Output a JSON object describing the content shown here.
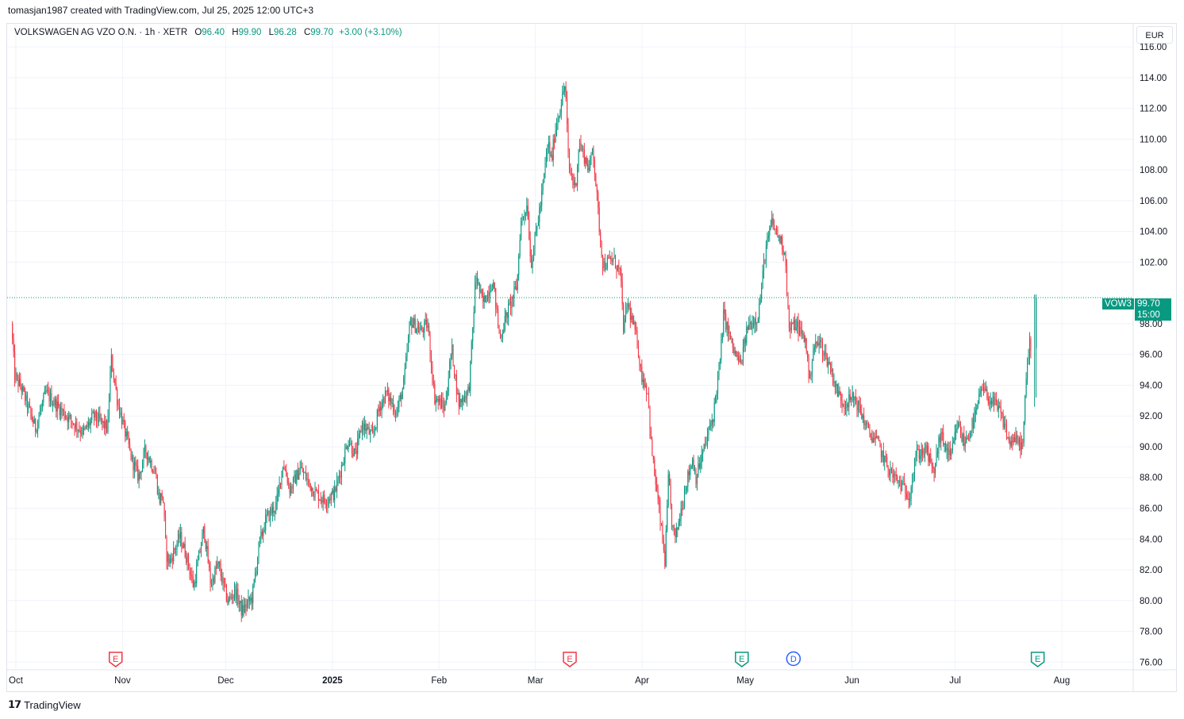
{
  "attribution": "tomasjan1987 created with TradingView.com, Jul 25, 2025 12:00 UTC+3",
  "legend": {
    "symbol": "VOLKSWAGEN AG VZO O.N. · 1h · XETR",
    "open_label": "O",
    "open": "96.40",
    "high_label": "H",
    "high": "99.90",
    "low_label": "L",
    "low": "96.28",
    "close_label": "C",
    "close": "99.70",
    "change": "+3.00 (+3.10%)"
  },
  "currency": "EUR",
  "last_price": {
    "ticker": "VOW3",
    "price": "99.70",
    "countdown": "15:00"
  },
  "logo_text": "TradingView",
  "colors": {
    "up": "#089981",
    "down": "#f23645",
    "grid": "#f0f3fa",
    "dividend": "#2962ff"
  },
  "chart_data": {
    "type": "candlestick",
    "title": "VOLKSWAGEN AG VZO O.N. · 1h · XETR",
    "ylim": [
      75.5,
      117.5
    ],
    "y_ticks": [
      "116.00",
      "114.00",
      "112.00",
      "110.00",
      "108.00",
      "106.00",
      "104.00",
      "102.00",
      "98.00",
      "96.00",
      "94.00",
      "92.00",
      "90.00",
      "88.00",
      "86.00",
      "84.00",
      "82.00",
      "80.00",
      "78.00",
      "76.00"
    ],
    "x_ticks": [
      {
        "label": "Oct",
        "date": "2024-10-01"
      },
      {
        "label": "Nov",
        "date": "2024-11-01"
      },
      {
        "label": "Dec",
        "date": "2024-12-01"
      },
      {
        "label": "2025",
        "date": "2025-01-01",
        "bold": true
      },
      {
        "label": "Feb",
        "date": "2025-02-01"
      },
      {
        "label": "Mar",
        "date": "2025-03-01"
      },
      {
        "label": "Apr",
        "date": "2025-04-01"
      },
      {
        "label": "May",
        "date": "2025-05-01"
      },
      {
        "label": "Jun",
        "date": "2025-06-01"
      },
      {
        "label": "Jul",
        "date": "2025-07-01"
      },
      {
        "label": "Aug",
        "date": "2025-08-01"
      }
    ],
    "price_path": [
      [
        "2024-09-30",
        98.0
      ],
      [
        "2024-10-01",
        94.6
      ],
      [
        "2024-10-03",
        93.8
      ],
      [
        "2024-10-07",
        91.2
      ],
      [
        "2024-10-10",
        93.5
      ],
      [
        "2024-10-14",
        92.5
      ],
      [
        "2024-10-17",
        91.8
      ],
      [
        "2024-10-21",
        90.9
      ],
      [
        "2024-10-24",
        92.0
      ],
      [
        "2024-10-28",
        91.2
      ],
      [
        "2024-10-29",
        95.8
      ],
      [
        "2024-10-31",
        92.8
      ],
      [
        "2024-11-04",
        89.2
      ],
      [
        "2024-11-06",
        88.0
      ],
      [
        "2024-11-08",
        89.8
      ],
      [
        "2024-11-11",
        88.2
      ],
      [
        "2024-11-12",
        86.5
      ],
      [
        "2024-11-13",
        87.0
      ],
      [
        "2024-11-14",
        83.0
      ],
      [
        "2024-11-15",
        82.5
      ],
      [
        "2024-11-18",
        84.2
      ],
      [
        "2024-11-20",
        82.8
      ],
      [
        "2024-11-22",
        80.9
      ],
      [
        "2024-11-25",
        84.7
      ],
      [
        "2024-11-27",
        81.0
      ],
      [
        "2024-11-29",
        82.4
      ],
      [
        "2024-12-02",
        79.9
      ],
      [
        "2024-12-04",
        80.7
      ],
      [
        "2024-12-06",
        79.3
      ],
      [
        "2024-12-09",
        80.2
      ],
      [
        "2024-12-11",
        83.6
      ],
      [
        "2024-12-13",
        85.3
      ],
      [
        "2024-12-16",
        86.2
      ],
      [
        "2024-12-18",
        89.0
      ],
      [
        "2024-12-20",
        87.2
      ],
      [
        "2024-12-23",
        88.6
      ],
      [
        "2024-12-27",
        87.1
      ],
      [
        "2024-12-30",
        86.5
      ],
      [
        "2025-01-02",
        87.0
      ],
      [
        "2025-01-06",
        90.5
      ],
      [
        "2025-01-08",
        89.4
      ],
      [
        "2025-01-10",
        91.5
      ],
      [
        "2025-01-13",
        90.6
      ],
      [
        "2025-01-15",
        92.6
      ],
      [
        "2025-01-17",
        93.5
      ],
      [
        "2025-01-20",
        92.2
      ],
      [
        "2025-01-22",
        94.0
      ],
      [
        "2025-01-24",
        98.2
      ],
      [
        "2025-01-27",
        97.5
      ],
      [
        "2025-01-29",
        98.0
      ],
      [
        "2025-01-31",
        93.2
      ],
      [
        "2025-02-03",
        92.5
      ],
      [
        "2025-02-05",
        96.4
      ],
      [
        "2025-02-07",
        92.8
      ],
      [
        "2025-02-10",
        93.7
      ],
      [
        "2025-02-11",
        97.2
      ],
      [
        "2025-02-12",
        101.2
      ],
      [
        "2025-02-14",
        99.3
      ],
      [
        "2025-02-17",
        100.8
      ],
      [
        "2025-02-19",
        97.0
      ],
      [
        "2025-02-21",
        98.6
      ],
      [
        "2025-02-24",
        100.5
      ],
      [
        "2025-02-25",
        104.5
      ],
      [
        "2025-02-27",
        105.8
      ],
      [
        "2025-02-28",
        101.8
      ],
      [
        "2025-03-03",
        106.0
      ],
      [
        "2025-03-05",
        109.8
      ],
      [
        "2025-03-06",
        108.5
      ],
      [
        "2025-03-07",
        110.5
      ],
      [
        "2025-03-10",
        113.6
      ],
      [
        "2025-03-11",
        108.2
      ],
      [
        "2025-03-13",
        106.8
      ],
      [
        "2025-03-14",
        109.8
      ],
      [
        "2025-03-17",
        108.0
      ],
      [
        "2025-03-18",
        109.6
      ],
      [
        "2025-03-20",
        104.0
      ],
      [
        "2025-03-21",
        101.8
      ],
      [
        "2025-03-24",
        102.2
      ],
      [
        "2025-03-26",
        101.3
      ],
      [
        "2025-03-27",
        97.5
      ],
      [
        "2025-03-28",
        99.4
      ],
      [
        "2025-03-31",
        96.8
      ],
      [
        "2025-04-01",
        94.8
      ],
      [
        "2025-04-03",
        93.6
      ],
      [
        "2025-04-04",
        90.0
      ],
      [
        "2025-04-07",
        84.5
      ],
      [
        "2025-04-08",
        82.5
      ],
      [
        "2025-04-09",
        88.0
      ],
      [
        "2025-04-10",
        85.0
      ],
      [
        "2025-04-11",
        84.0
      ],
      [
        "2025-04-14",
        87.5
      ],
      [
        "2025-04-16",
        89.2
      ],
      [
        "2025-04-17",
        88.0
      ],
      [
        "2025-04-22",
        92.0
      ],
      [
        "2025-04-23",
        93.8
      ],
      [
        "2025-04-24",
        95.5
      ],
      [
        "2025-04-25",
        98.6
      ],
      [
        "2025-04-28",
        96.2
      ],
      [
        "2025-04-30",
        95.3
      ],
      [
        "2025-05-02",
        97.8
      ],
      [
        "2025-05-05",
        98.5
      ],
      [
        "2025-05-06",
        100.2
      ],
      [
        "2025-05-07",
        102.5
      ],
      [
        "2025-05-08",
        103.5
      ],
      [
        "2025-05-09",
        104.6
      ],
      [
        "2025-05-12",
        103.2
      ],
      [
        "2025-05-13",
        102.4
      ],
      [
        "2025-05-14",
        97.6
      ],
      [
        "2025-05-16",
        98.0
      ],
      [
        "2025-05-19",
        96.8
      ],
      [
        "2025-05-20",
        94.0
      ],
      [
        "2025-05-21",
        96.4
      ],
      [
        "2025-05-23",
        96.8
      ],
      [
        "2025-05-26",
        95.2
      ],
      [
        "2025-05-28",
        93.6
      ],
      [
        "2025-05-30",
        92.8
      ],
      [
        "2025-06-02",
        93.2
      ],
      [
        "2025-06-04",
        92.2
      ],
      [
        "2025-06-06",
        91.0
      ],
      [
        "2025-06-09",
        90.2
      ],
      [
        "2025-06-11",
        89.0
      ],
      [
        "2025-06-13",
        88.2
      ],
      [
        "2025-06-16",
        87.4
      ],
      [
        "2025-06-18",
        86.8
      ],
      [
        "2025-06-20",
        89.5
      ],
      [
        "2025-06-23",
        89.8
      ],
      [
        "2025-06-25",
        88.2
      ],
      [
        "2025-06-27",
        90.8
      ],
      [
        "2025-06-30",
        89.2
      ],
      [
        "2025-07-02",
        91.5
      ],
      [
        "2025-07-04",
        90.2
      ],
      [
        "2025-07-07",
        91.8
      ],
      [
        "2025-07-09",
        93.8
      ],
      [
        "2025-07-11",
        93.2
      ],
      [
        "2025-07-14",
        92.4
      ],
      [
        "2025-07-16",
        91.2
      ],
      [
        "2025-07-17",
        90.2
      ],
      [
        "2025-07-18",
        90.5
      ],
      [
        "2025-07-21",
        90.1
      ],
      [
        "2025-07-22",
        94.5
      ],
      [
        "2025-07-23",
        96.8
      ],
      [
        "2025-07-24",
        96.4
      ],
      [
        "2025-07-25",
        99.7
      ]
    ],
    "last_price": 99.7,
    "events": [
      {
        "type": "earnings",
        "label": "E",
        "date": "2024-10-30",
        "color": "#f23645"
      },
      {
        "type": "earnings",
        "label": "E",
        "date": "2025-03-11",
        "color": "#f23645"
      },
      {
        "type": "earnings",
        "label": "E",
        "date": "2025-04-30",
        "color": "#089981"
      },
      {
        "type": "dividend",
        "label": "D",
        "date": "2025-05-15",
        "color": "#2962ff"
      },
      {
        "type": "earnings",
        "label": "E",
        "date": "2025-07-25",
        "color": "#089981"
      }
    ]
  }
}
